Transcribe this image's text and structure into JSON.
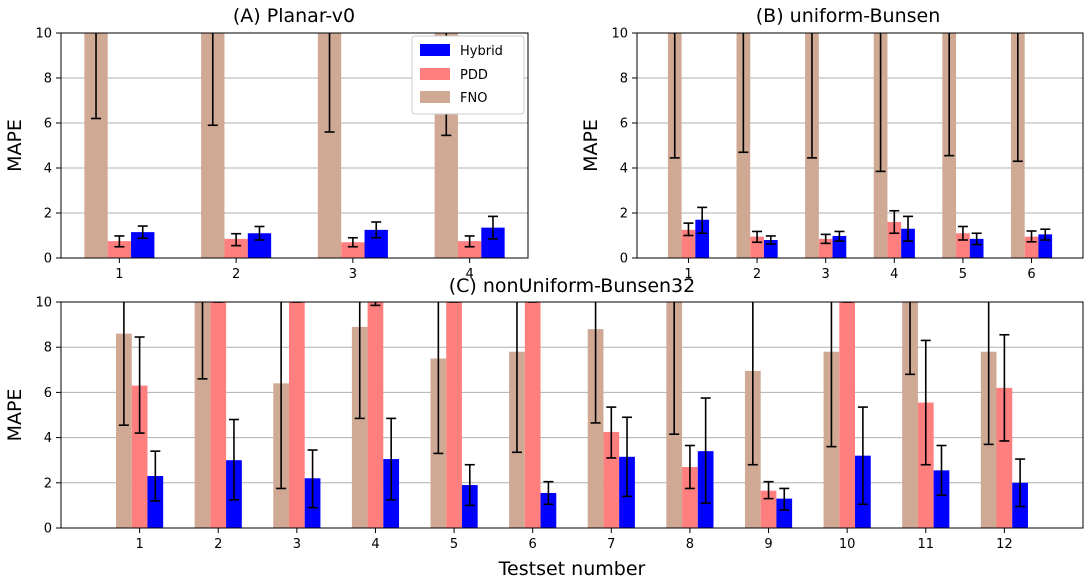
{
  "colors": {
    "hybrid": "#0000ff",
    "pdd": "#ff7f7f",
    "fno": "#cfa994"
  },
  "legend": {
    "position": "upper right of panel A",
    "entries": [
      "Hybrid",
      "PDD",
      "FNO"
    ]
  },
  "chart_data": [
    {
      "type": "bar",
      "title": "(A) Planar-v0",
      "xlabel": "",
      "ylabel": "MAPE",
      "ylim": [
        0,
        10
      ],
      "yticks": [
        "0",
        "2",
        "4",
        "6",
        "8",
        "10"
      ],
      "grid": true,
      "categories": [
        "1",
        "2",
        "3",
        "4"
      ],
      "series": [
        {
          "name": "FNO",
          "values": [
            10,
            10,
            10,
            10
          ],
          "err_low": [
            6.2,
            5.9,
            5.6,
            5.45
          ]
        },
        {
          "name": "PDD",
          "values": [
            0.75,
            0.85,
            0.7,
            0.75
          ],
          "err_low": [
            0.5,
            0.55,
            0.5,
            0.5
          ],
          "err_high": [
            0.98,
            1.08,
            0.9,
            0.98
          ]
        },
        {
          "name": "Hybrid",
          "values": [
            1.15,
            1.1,
            1.25,
            1.35
          ],
          "err_low": [
            0.88,
            0.8,
            0.9,
            0.85
          ],
          "err_high": [
            1.42,
            1.4,
            1.6,
            1.85
          ]
        }
      ]
    },
    {
      "type": "bar",
      "title": "(B) uniform-Bunsen",
      "xlabel": "",
      "ylabel": "MAPE",
      "ylim": [
        0,
        10
      ],
      "yticks": [
        "0",
        "2",
        "4",
        "6",
        "8",
        "10"
      ],
      "grid": true,
      "categories": [
        "1",
        "2",
        "3",
        "4",
        "5",
        "6"
      ],
      "series": [
        {
          "name": "FNO",
          "values": [
            10,
            10,
            10,
            10,
            10,
            10
          ],
          "err_low": [
            4.45,
            4.7,
            4.45,
            3.85,
            4.55,
            4.3
          ]
        },
        {
          "name": "PDD",
          "values": [
            1.25,
            0.95,
            0.85,
            1.6,
            1.1,
            0.95
          ],
          "err_low": [
            1.0,
            0.7,
            0.65,
            1.1,
            0.8,
            0.72
          ],
          "err_high": [
            1.55,
            1.18,
            1.05,
            2.1,
            1.4,
            1.2
          ]
        },
        {
          "name": "Hybrid",
          "values": [
            1.7,
            0.8,
            0.98,
            1.3,
            0.85,
            1.05
          ],
          "err_low": [
            1.1,
            0.62,
            0.75,
            0.75,
            0.6,
            0.8
          ],
          "err_high": [
            2.25,
            0.98,
            1.18,
            1.85,
            1.1,
            1.28
          ]
        }
      ]
    },
    {
      "type": "bar",
      "title": "(C) nonUniform-Bunsen32",
      "xlabel": "Testset number",
      "ylabel": "MAPE",
      "ylim": [
        0,
        10
      ],
      "yticks": [
        "0",
        "2",
        "4",
        "6",
        "8",
        "10"
      ],
      "grid": true,
      "categories": [
        "1",
        "2",
        "3",
        "4",
        "5",
        "6",
        "7",
        "8",
        "9",
        "10",
        "11",
        "12"
      ],
      "series": [
        {
          "name": "FNO",
          "values": [
            8.6,
            10,
            6.4,
            8.9,
            7.5,
            7.8,
            8.8,
            10,
            6.95,
            7.8,
            10,
            7.8
          ],
          "err_low": [
            4.55,
            6.6,
            1.75,
            4.85,
            3.3,
            3.35,
            4.65,
            4.15,
            2.8,
            3.6,
            6.8,
            3.7
          ],
          "err_high": [
            10,
            10,
            10,
            10,
            10,
            10,
            10,
            10,
            10,
            10,
            10,
            10
          ]
        },
        {
          "name": "PDD",
          "values": [
            6.3,
            10,
            10,
            10,
            10,
            10,
            4.25,
            2.7,
            1.65,
            10,
            5.55,
            6.2
          ],
          "err_low": [
            4.2,
            10,
            10,
            9.85,
            10,
            10,
            3.1,
            1.75,
            1.3,
            10,
            2.8,
            3.85
          ],
          "err_high": [
            8.45,
            10,
            10,
            10,
            10,
            10,
            5.35,
            3.65,
            2.05,
            10,
            8.3,
            8.55
          ]
        },
        {
          "name": "Hybrid",
          "values": [
            2.3,
            3.0,
            2.2,
            3.05,
            1.9,
            1.55,
            3.15,
            3.4,
            1.3,
            3.2,
            2.55,
            2.0
          ],
          "err_low": [
            1.2,
            1.25,
            0.9,
            1.25,
            1.0,
            1.05,
            1.4,
            1.1,
            0.8,
            1.05,
            1.45,
            0.95
          ],
          "err_high": [
            3.4,
            4.8,
            3.45,
            4.85,
            2.8,
            2.05,
            4.9,
            5.75,
            1.75,
            5.35,
            3.65,
            3.05
          ]
        }
      ]
    }
  ]
}
